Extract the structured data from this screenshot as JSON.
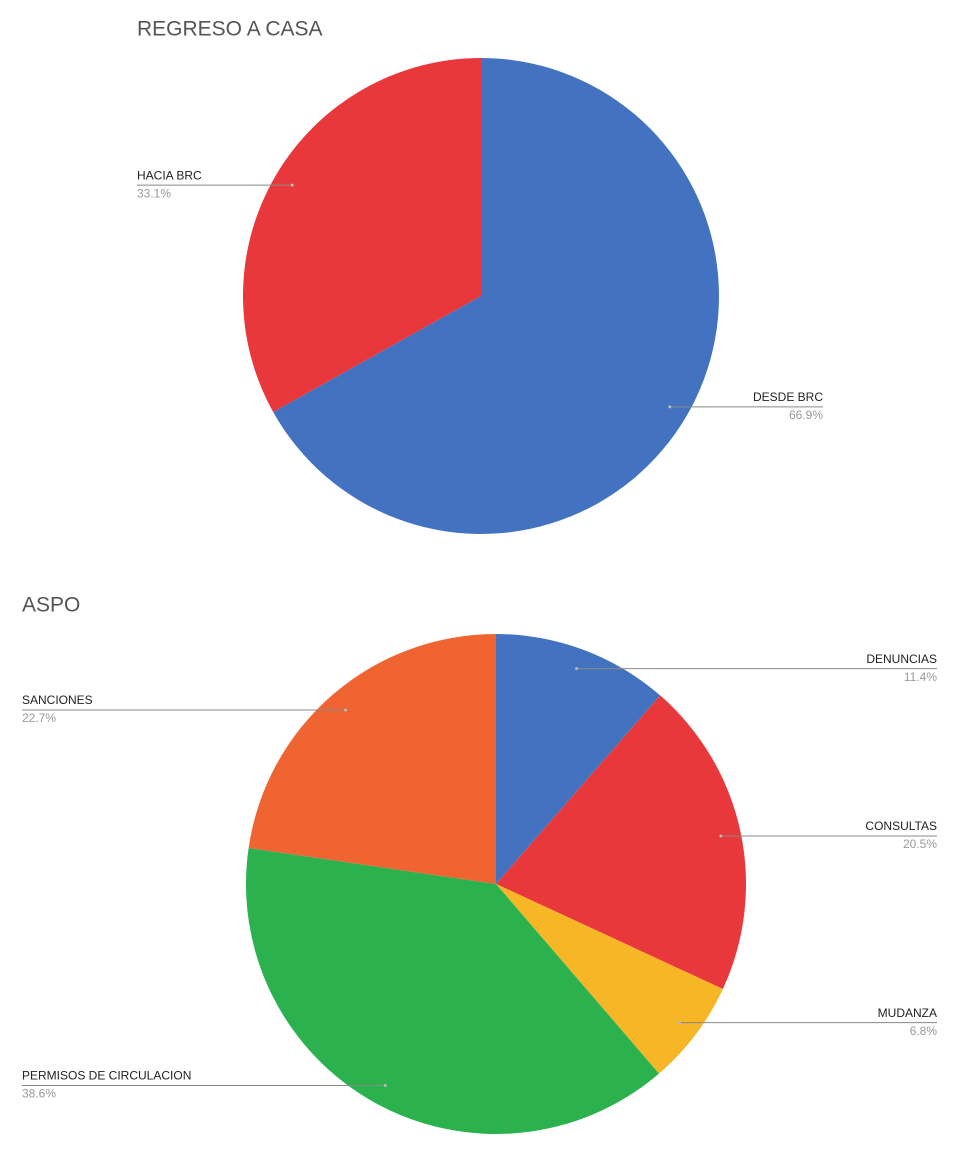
{
  "chart_data": [
    {
      "type": "pie",
      "title": "REGRESO A CASA",
      "categories": [
        "DESDE BRC",
        "HACIA BRC"
      ],
      "values": [
        66.9,
        33.1
      ],
      "value_labels": [
        "66.9%",
        "33.1%"
      ],
      "colors": [
        "#4373c0",
        "#e8383b"
      ]
    },
    {
      "type": "pie",
      "title": "ASPO",
      "categories": [
        "DENUNCIAS",
        "CONSULTAS",
        "MUDANZA",
        "PERMISOS DE CIRCULACION",
        "SANCIONES"
      ],
      "values": [
        11.4,
        20.5,
        6.8,
        38.6,
        22.7
      ],
      "value_labels": [
        "11.4%",
        "20.5%",
        "6.8%",
        "38.6%",
        "22.7%"
      ],
      "colors": [
        "#4373c0",
        "#e8383b",
        "#f6b626",
        "#2bb14e",
        "#ef6430"
      ]
    }
  ]
}
